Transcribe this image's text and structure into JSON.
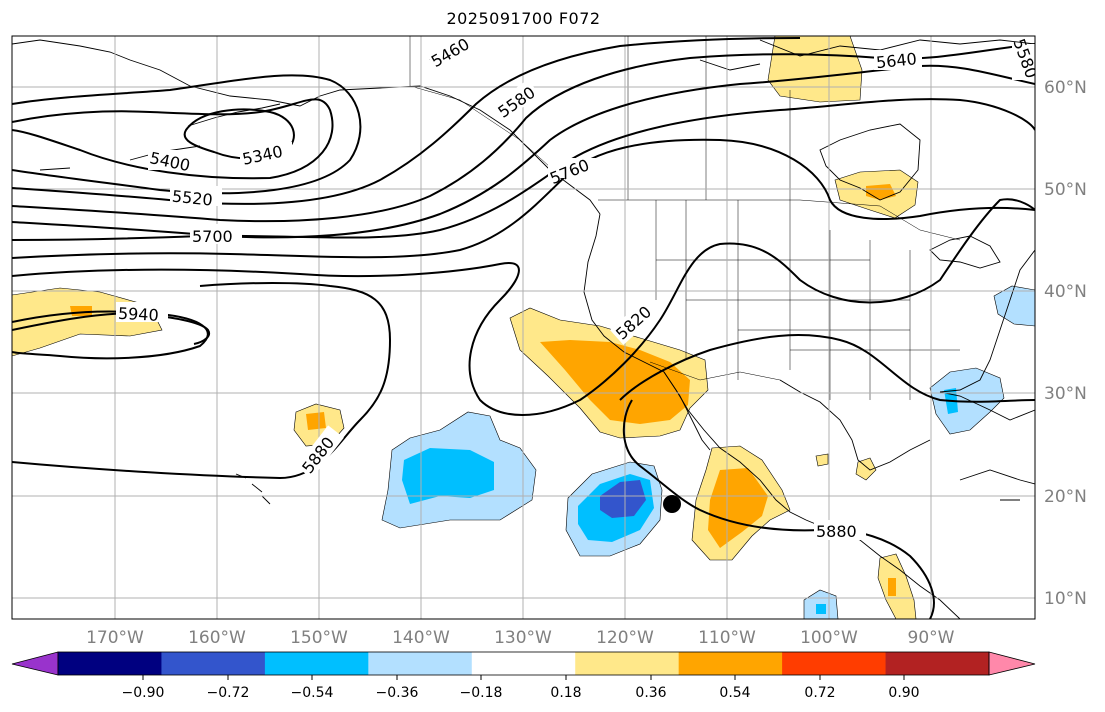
{
  "title": "2025091700 F072",
  "map": {
    "lon_ticks": [
      "170°W",
      "160°W",
      "150°W",
      "140°W",
      "130°W",
      "120°W",
      "110°W",
      "100°W",
      "90°W"
    ],
    "lat_ticks": [
      "60°N",
      "50°N",
      "40°N",
      "30°N",
      "20°N",
      "10°N"
    ],
    "contour_labels": [
      "5460",
      "5580",
      "5640",
      "5580",
      "5340",
      "5400",
      "5520",
      "5700",
      "5760",
      "5940",
      "5820",
      "5880",
      "5880"
    ],
    "marker": "storm-center-dot"
  },
  "colorbar": {
    "tick_labels": [
      "−0.90",
      "−0.72",
      "−0.54",
      "−0.36",
      "−0.18",
      "0.18",
      "0.36",
      "0.54",
      "0.72",
      "0.90"
    ],
    "colors": [
      "#9933cc",
      "#000080",
      "#3355cc",
      "#00bfff",
      "#b3e0ff",
      "#ffffff",
      "#ffe88a",
      "#ffa500",
      "#ff3d00",
      "#b22222",
      "#ff88aa"
    ]
  },
  "colors": {
    "land_line": "#000000",
    "grid": "#b0b0b0",
    "tick_text": "#808080"
  }
}
